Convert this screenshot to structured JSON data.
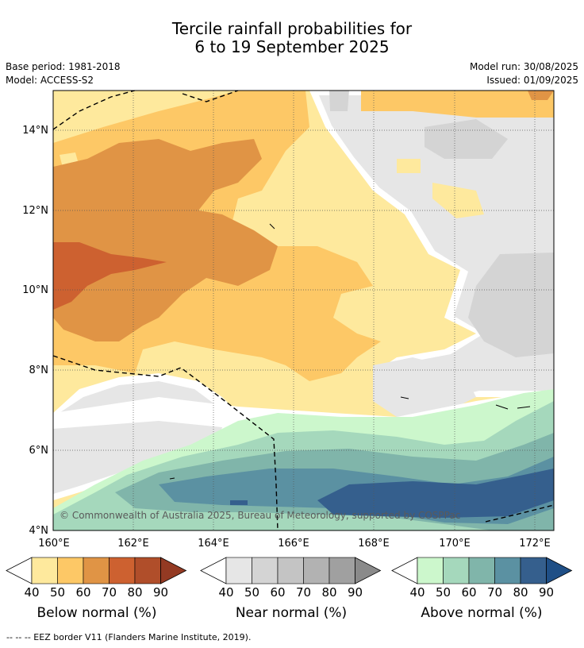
{
  "header": {
    "title_line1": "Tercile rainfall probabilities for",
    "title_line2": "6 to 19 September 2025",
    "base_period": "Base period: 1981-2018",
    "model": "Model: ACCESS-S2",
    "model_run": "Model run: 30/08/2025",
    "issued": "Issued: 01/09/2025"
  },
  "map": {
    "lat_ticks": [
      "14°N",
      "12°N",
      "10°N",
      "8°N",
      "6°N",
      "4°N"
    ],
    "lon_ticks": [
      "160°E",
      "162°E",
      "164°E",
      "166°E",
      "168°E",
      "170°E",
      "172°E"
    ],
    "copyright": "© Commonwealth of Australia 2025, Bureau of Meteorology, supported by COSPPac"
  },
  "legends": [
    {
      "caption": "Below normal (%)",
      "labels": [
        "40",
        "50",
        "60",
        "70",
        "80",
        "90"
      ],
      "colors": [
        "#ffffff",
        "#fee99d",
        "#fdc866",
        "#e09445",
        "#cd6130",
        "#b04e2a",
        "#943a23"
      ]
    },
    {
      "caption": "Near normal (%)",
      "labels": [
        "40",
        "50",
        "60",
        "70",
        "80",
        "90"
      ],
      "colors": [
        "#ffffff",
        "#e6e6e6",
        "#d4d4d4",
        "#c4c4c4",
        "#b2b2b2",
        "#a0a0a0",
        "#8a8a8a"
      ]
    },
    {
      "caption": "Above normal (%)",
      "labels": [
        "40",
        "50",
        "60",
        "70",
        "80",
        "90"
      ],
      "colors": [
        "#ffffff",
        "#ccf7cc",
        "#a5d8bc",
        "#80b5aa",
        "#5b91a2",
        "#355f8d",
        "#1f4f86"
      ]
    }
  ],
  "footer": {
    "eez_note": "--  --  -- EEZ border V11 (Flanders Marine Institute, 2019)."
  }
}
